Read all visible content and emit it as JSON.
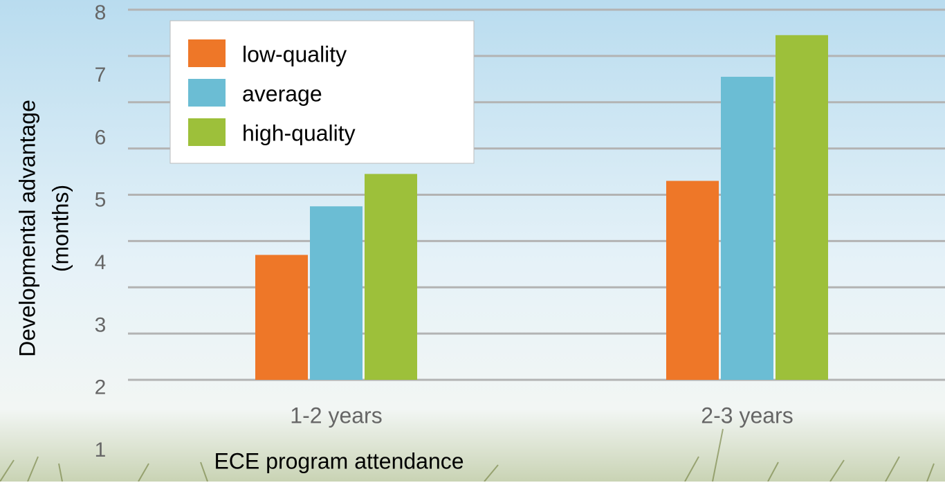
{
  "chart_data": {
    "type": "bar",
    "categories": [
      "1-2 years",
      "2-3 years"
    ],
    "series": [
      {
        "name": "low-quality",
        "color": "#ee7728",
        "values": [
          2.7,
          4.3
        ]
      },
      {
        "name": "average",
        "color": "#6bbdd4",
        "values": [
          3.75,
          6.55
        ]
      },
      {
        "name": "high-quality",
        "color": "#9dc03a",
        "values": [
          4.45,
          7.45
        ]
      }
    ],
    "ylim": [
      0,
      8
    ],
    "yticks": [
      1,
      2,
      3,
      4,
      5,
      6,
      7,
      8
    ],
    "grid": true,
    "y_label": [
      "Developmental advantage",
      "(months)"
    ],
    "x_label": "ECE program attendance",
    "legend": "top-left"
  }
}
